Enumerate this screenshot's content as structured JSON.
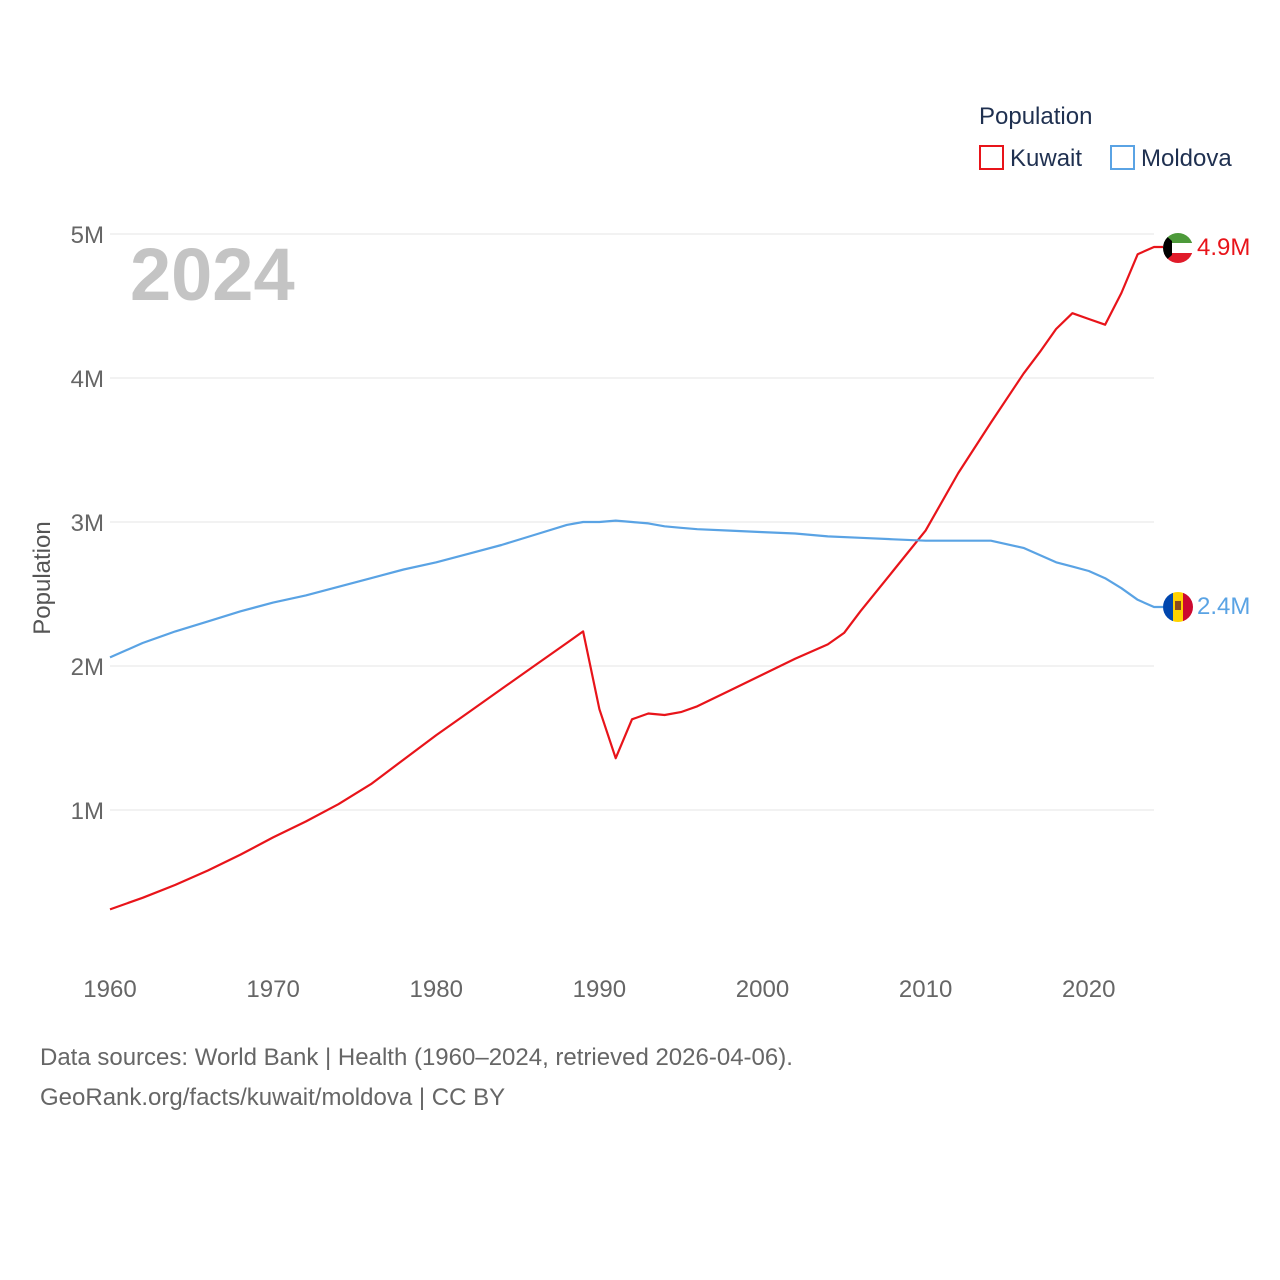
{
  "chart_data": {
    "type": "line",
    "title": "Population",
    "year_label": "2024",
    "xlabel": "",
    "ylabel": "Population",
    "xlim": [
      1960,
      2024
    ],
    "ylim": [
      0,
      5000000
    ],
    "x_ticks": [
      1960,
      1970,
      1980,
      1990,
      2000,
      2010,
      2020
    ],
    "x_tick_labels": [
      "1960",
      "1970",
      "1980",
      "1990",
      "2000",
      "2010",
      "2020"
    ],
    "y_ticks": [
      1000000,
      2000000,
      3000000,
      4000000,
      5000000
    ],
    "y_tick_labels": [
      "1M",
      "2M",
      "3M",
      "4M",
      "5M"
    ],
    "grid": true,
    "legend": {
      "title": "Population",
      "placement": "top-right"
    },
    "series": [
      {
        "name": "Kuwait",
        "color": "#e8141a",
        "end_label": "4.9M",
        "flag_icon": "kuwait-flag-icon",
        "x": [
          1960,
          1962,
          1964,
          1966,
          1968,
          1970,
          1972,
          1974,
          1976,
          1978,
          1980,
          1982,
          1984,
          1986,
          1988,
          1989,
          1990,
          1991,
          1992,
          1993,
          1994,
          1995,
          1996,
          1998,
          2000,
          2002,
          2004,
          2005,
          2006,
          2008,
          2010,
          2012,
          2014,
          2016,
          2017,
          2018,
          2019,
          2020,
          2021,
          2022,
          2023,
          2024
        ],
        "values": [
          310000,
          390000,
          480000,
          580000,
          690000,
          810000,
          920000,
          1040000,
          1180000,
          1350000,
          1520000,
          1680000,
          1840000,
          2000000,
          2160000,
          2240000,
          1700000,
          1360000,
          1630000,
          1670000,
          1660000,
          1680000,
          1720000,
          1830000,
          1940000,
          2050000,
          2150000,
          2230000,
          2380000,
          2660000,
          2940000,
          3340000,
          3690000,
          4030000,
          4180000,
          4340000,
          4450000,
          4410000,
          4370000,
          4590000,
          4860000,
          4910000
        ]
      },
      {
        "name": "Moldova",
        "color": "#5aa3e4",
        "end_label": "2.4M",
        "flag_icon": "moldova-flag-icon",
        "x": [
          1960,
          1962,
          1964,
          1966,
          1968,
          1970,
          1972,
          1974,
          1976,
          1978,
          1980,
          1982,
          1984,
          1986,
          1988,
          1989,
          1990,
          1991,
          1992,
          1993,
          1994,
          1995,
          1996,
          1998,
          2000,
          2002,
          2004,
          2006,
          2008,
          2010,
          2012,
          2014,
          2016,
          2018,
          2019,
          2020,
          2021,
          2022,
          2023,
          2024
        ],
        "values": [
          2060000,
          2160000,
          2240000,
          2310000,
          2380000,
          2440000,
          2490000,
          2550000,
          2610000,
          2670000,
          2720000,
          2780000,
          2840000,
          2910000,
          2980000,
          3000000,
          3000000,
          3010000,
          3000000,
          2990000,
          2970000,
          2960000,
          2950000,
          2940000,
          2930000,
          2920000,
          2900000,
          2890000,
          2880000,
          2870000,
          2870000,
          2870000,
          2820000,
          2720000,
          2690000,
          2660000,
          2610000,
          2540000,
          2460000,
          2410000
        ]
      }
    ]
  },
  "source": {
    "line1": "Data sources: World Bank | Health (1960–2024, retrieved 2026-04-06).",
    "line2": "GeoRank.org/facts/kuwait/moldova | CC BY"
  }
}
